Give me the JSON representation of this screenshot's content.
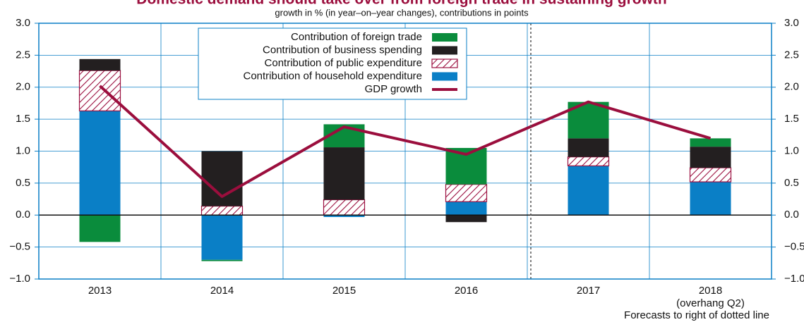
{
  "chart_data": {
    "type": "bar",
    "stacked": true,
    "title": "Domestic demand should take over from foreign trade in sustaining growth",
    "subtitle": "growth in % (in year–on–year changes), contributions in points",
    "categories": [
      "2013",
      "2014",
      "2015",
      "2016",
      "2017",
      "2018"
    ],
    "category_note": "(overhang Q2)",
    "annotation": "Forecasts to right of dotted line",
    "series": [
      {
        "name": "Contribution of household expenditure",
        "color": "#0a7fc6",
        "values": [
          1.63,
          -0.7,
          -0.03,
          0.21,
          0.77,
          0.52
        ]
      },
      {
        "name": "Contribution of public expenditure",
        "color": "#9b1040",
        "pattern": "hatch",
        "values": [
          0.63,
          0.14,
          0.24,
          0.27,
          0.14,
          0.22
        ]
      },
      {
        "name": "Contribution of business spending",
        "color": "#231f20",
        "values": [
          0.18,
          0.86,
          0.82,
          -0.11,
          0.29,
          0.33
        ]
      },
      {
        "name": "Contribution of foreign trade",
        "color": "#0a8c3c",
        "values": [
          -0.42,
          -0.02,
          0.36,
          0.57,
          0.57,
          0.13
        ]
      },
      {
        "name": "GDP growth",
        "type": "line",
        "color": "#9b0e3d",
        "values": [
          2.02,
          0.29,
          1.38,
          0.95,
          1.77,
          1.2
        ]
      }
    ],
    "ylim": [
      -1,
      3
    ],
    "yticks": [
      {
        "value": -1,
        "label": "−1.0"
      },
      {
        "value": -0.5,
        "label": "−0.5"
      },
      {
        "value": 0,
        "label": "0.0"
      },
      {
        "value": 0.5,
        "label": "0.5"
      },
      {
        "value": 1,
        "label": "1.0"
      },
      {
        "value": 1.5,
        "label": "1.5"
      },
      {
        "value": 2,
        "label": "2.0"
      },
      {
        "value": 2.5,
        "label": "2.5"
      },
      {
        "value": 3,
        "label": "3.0"
      }
    ],
    "y2lim": [
      -1,
      3
    ],
    "y2ticks": [
      {
        "value": -1,
        "label": "−1.0"
      },
      {
        "value": -0.5,
        "label": "−0.5"
      },
      {
        "value": 0,
        "label": "0.0"
      },
      {
        "value": 0.5,
        "label": "0.5"
      },
      {
        "value": 1,
        "label": "1.0"
      },
      {
        "value": 1.5,
        "label": "1.5"
      },
      {
        "value": 2,
        "label": "2.0"
      },
      {
        "value": 2.5,
        "label": "2.5"
      },
      {
        "value": 3,
        "label": "3.0"
      }
    ],
    "grid": true,
    "legend": "top"
  }
}
